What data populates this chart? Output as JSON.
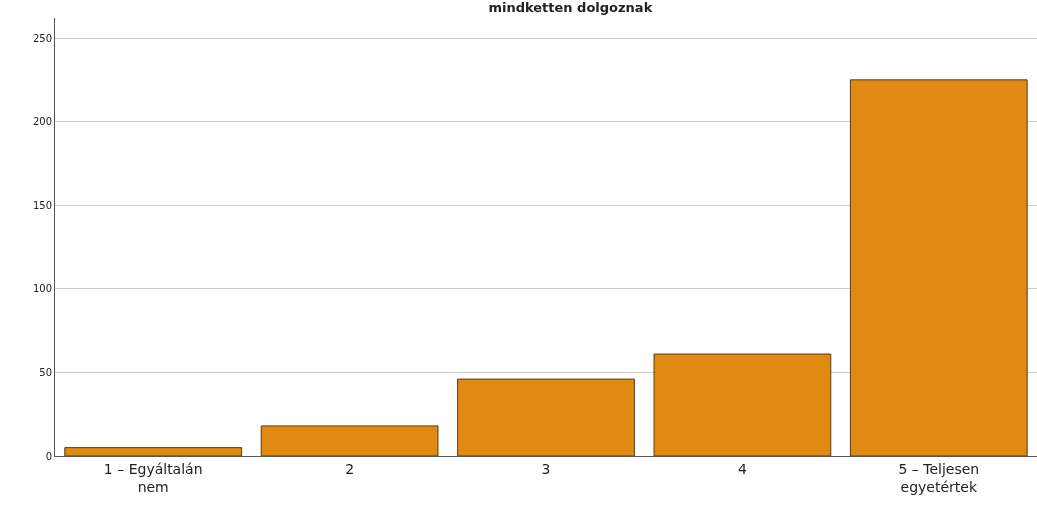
{
  "chart_data": {
    "type": "bar",
    "title": "mindketten dolgoznak",
    "categories": [
      "1 – Egyáltalán nem",
      "2",
      "3",
      "4",
      "5 – Teljesen egyetértek"
    ],
    "values": [
      5,
      18,
      46,
      61,
      225
    ],
    "color": "#e08a13",
    "ylim": [
      0,
      262
    ],
    "yticks": [
      0,
      50,
      100,
      150,
      200,
      250
    ],
    "grid": "y"
  }
}
